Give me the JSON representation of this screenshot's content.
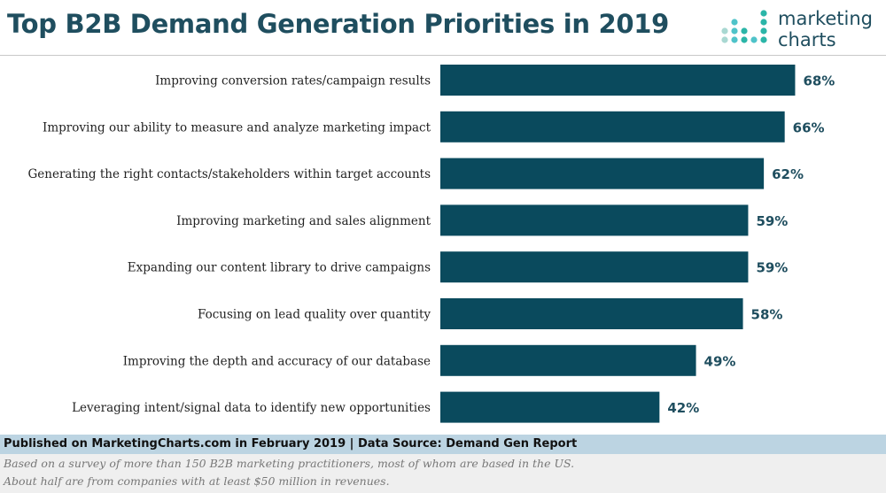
{
  "header": {
    "title": "Top B2B Demand Generation Priorities in 2019"
  },
  "logo": {
    "line1": "marketing",
    "line2": "charts",
    "dot_colors": [
      "#2bb5a8",
      "#4fc3c9",
      "#1f4e5f",
      "#a9d8d2"
    ]
  },
  "chart_data": {
    "type": "bar",
    "orientation": "horizontal",
    "categories": [
      "Improving conversion rates/campaign results",
      "Improving our ability to measure and analyze marketing impact",
      "Generating the right contacts/stakeholders within target accounts",
      "Improving marketing and sales alignment",
      "Expanding our content library to drive campaigns",
      "Focusing on lead quality over quantity",
      "Improving the depth and accuracy of our database",
      "Leveraging intent/signal data to identify new opportunities"
    ],
    "values": [
      68,
      66,
      62,
      59,
      59,
      58,
      49,
      42
    ],
    "value_labels": [
      "68%",
      "66%",
      "62%",
      "59%",
      "59%",
      "58%",
      "49%",
      "42%"
    ],
    "xlim": [
      0,
      72
    ],
    "bar_color": "#0a4a5d",
    "grid": false,
    "legend": "none"
  },
  "footer": {
    "source": "Published on MarketingCharts.com in February 2019 | Data Source: Demand Gen Report",
    "note1": "Based on a survey of more than 150 B2B marketing practitioners, most of whom are based in the US.",
    "note2": "About half are from companies with at least $50 million in revenues."
  }
}
